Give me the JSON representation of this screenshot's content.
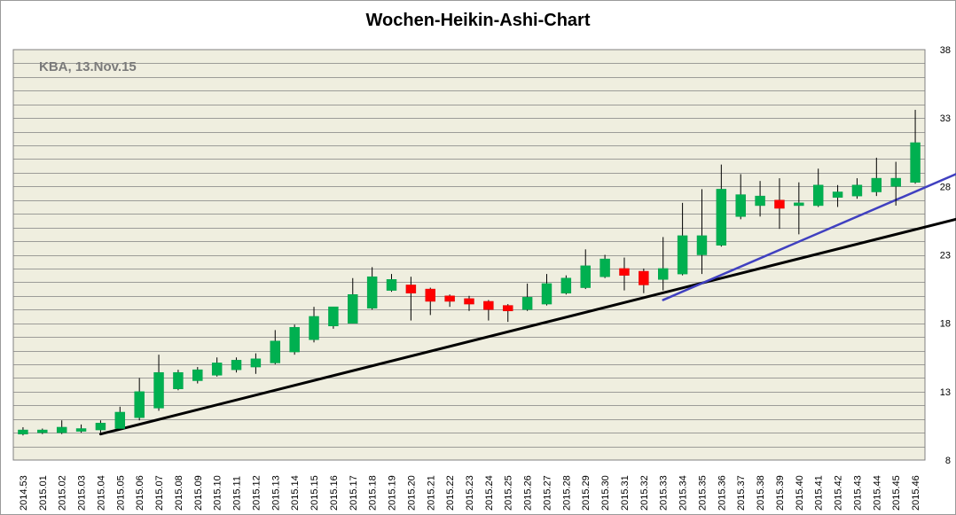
{
  "chart_data": {
    "type": "candlestick",
    "title": "Wochen-Heikin-Ashi-Chart",
    "annotation": "KBA, 13.Nov.15",
    "xlabel": "",
    "ylabel": "",
    "ylim": [
      8,
      38
    ],
    "y_ticks": [
      8,
      13,
      18,
      23,
      28,
      33,
      38
    ],
    "y_axis_side": "right",
    "grid": true,
    "background": "#efeedf",
    "colors": {
      "up": "#00b050",
      "down": "#ff0000",
      "wick": "#000000",
      "trend_main": "#000000",
      "trend_recent": "#4040c0",
      "grid": "#808080"
    },
    "categories": [
      "2014.53",
      "2015.01",
      "2015.02",
      "2015.03",
      "2015.04",
      "2015.05",
      "2015.06",
      "2015.07",
      "2015.08",
      "2015.09",
      "2015.10",
      "2015.11",
      "2015.12",
      "2015.13",
      "2015.14",
      "2015.15",
      "2015.16",
      "2015.17",
      "2015.18",
      "2015.19",
      "2015.20",
      "2015.21",
      "2015.22",
      "2015.23",
      "2015.24",
      "2015.25",
      "2015.26",
      "2015.27",
      "2015.28",
      "2015.29",
      "2015.30",
      "2015.31",
      "2015.32",
      "2015.33",
      "2015.34",
      "2015.35",
      "2015.36",
      "2015.37",
      "2015.38",
      "2015.39",
      "2015.40",
      "2015.41",
      "2015.42",
      "2015.43",
      "2015.44",
      "2015.45",
      "2015.46"
    ],
    "candles": [
      {
        "open": 9.9,
        "close": 10.2,
        "high": 10.4,
        "low": 9.8,
        "dir": "up"
      },
      {
        "open": 10.0,
        "close": 10.2,
        "high": 10.3,
        "low": 9.9,
        "dir": "up"
      },
      {
        "open": 10.0,
        "close": 10.4,
        "high": 10.9,
        "low": 9.9,
        "dir": "up"
      },
      {
        "open": 10.1,
        "close": 10.3,
        "high": 10.6,
        "low": 10.0,
        "dir": "up"
      },
      {
        "open": 10.2,
        "close": 10.7,
        "high": 10.9,
        "low": 10.0,
        "dir": "up"
      },
      {
        "open": 10.3,
        "close": 11.5,
        "high": 11.9,
        "low": 10.2,
        "dir": "up"
      },
      {
        "open": 11.1,
        "close": 13.0,
        "high": 14.0,
        "low": 10.9,
        "dir": "up"
      },
      {
        "open": 11.8,
        "close": 14.4,
        "high": 15.7,
        "low": 11.6,
        "dir": "up"
      },
      {
        "open": 13.2,
        "close": 14.4,
        "high": 14.6,
        "low": 13.1,
        "dir": "up"
      },
      {
        "open": 13.8,
        "close": 14.6,
        "high": 14.8,
        "low": 13.6,
        "dir": "up"
      },
      {
        "open": 14.2,
        "close": 15.1,
        "high": 15.5,
        "low": 14.1,
        "dir": "up"
      },
      {
        "open": 14.6,
        "close": 15.3,
        "high": 15.5,
        "low": 14.4,
        "dir": "up"
      },
      {
        "open": 14.8,
        "close": 15.4,
        "high": 15.8,
        "low": 14.3,
        "dir": "up"
      },
      {
        "open": 15.1,
        "close": 16.7,
        "high": 17.5,
        "low": 15.0,
        "dir": "up"
      },
      {
        "open": 15.9,
        "close": 17.7,
        "high": 17.9,
        "low": 15.7,
        "dir": "up"
      },
      {
        "open": 16.8,
        "close": 18.5,
        "high": 19.2,
        "low": 16.6,
        "dir": "up"
      },
      {
        "open": 17.8,
        "close": 19.2,
        "high": 19.2,
        "low": 17.6,
        "dir": "up"
      },
      {
        "open": 18.0,
        "close": 20.1,
        "high": 21.3,
        "low": 18.0,
        "dir": "up"
      },
      {
        "open": 19.1,
        "close": 21.4,
        "high": 22.1,
        "low": 19.0,
        "dir": "up"
      },
      {
        "open": 20.4,
        "close": 21.2,
        "high": 21.6,
        "low": 20.3,
        "dir": "up"
      },
      {
        "open": 20.8,
        "close": 20.2,
        "high": 21.4,
        "low": 18.2,
        "dir": "down"
      },
      {
        "open": 20.5,
        "close": 19.6,
        "high": 20.6,
        "low": 18.6,
        "dir": "down"
      },
      {
        "open": 20.0,
        "close": 19.6,
        "high": 20.1,
        "low": 19.2,
        "dir": "down"
      },
      {
        "open": 19.8,
        "close": 19.4,
        "high": 20.0,
        "low": 18.9,
        "dir": "down"
      },
      {
        "open": 19.6,
        "close": 19.0,
        "high": 19.7,
        "low": 18.2,
        "dir": "down"
      },
      {
        "open": 19.3,
        "close": 18.9,
        "high": 19.4,
        "low": 18.1,
        "dir": "down"
      },
      {
        "open": 19.0,
        "close": 19.9,
        "high": 20.9,
        "low": 18.9,
        "dir": "up"
      },
      {
        "open": 19.4,
        "close": 20.9,
        "high": 21.6,
        "low": 19.3,
        "dir": "up"
      },
      {
        "open": 20.2,
        "close": 21.3,
        "high": 21.5,
        "low": 20.1,
        "dir": "up"
      },
      {
        "open": 20.6,
        "close": 22.2,
        "high": 23.4,
        "low": 20.5,
        "dir": "up"
      },
      {
        "open": 21.4,
        "close": 22.7,
        "high": 23.0,
        "low": 21.3,
        "dir": "up"
      },
      {
        "open": 22.0,
        "close": 21.5,
        "high": 22.8,
        "low": 20.4,
        "dir": "down"
      },
      {
        "open": 21.8,
        "close": 20.8,
        "high": 22.0,
        "low": 20.2,
        "dir": "down"
      },
      {
        "open": 21.2,
        "close": 22.0,
        "high": 24.3,
        "low": 20.4,
        "dir": "up"
      },
      {
        "open": 21.6,
        "close": 24.4,
        "high": 26.8,
        "low": 21.5,
        "dir": "up"
      },
      {
        "open": 23.0,
        "close": 24.4,
        "high": 27.8,
        "low": 21.6,
        "dir": "up"
      },
      {
        "open": 23.7,
        "close": 27.8,
        "high": 29.6,
        "low": 23.6,
        "dir": "up"
      },
      {
        "open": 25.8,
        "close": 27.4,
        "high": 28.9,
        "low": 25.6,
        "dir": "up"
      },
      {
        "open": 26.6,
        "close": 27.3,
        "high": 28.4,
        "low": 25.8,
        "dir": "up"
      },
      {
        "open": 27.0,
        "close": 26.4,
        "high": 28.6,
        "low": 24.9,
        "dir": "down"
      },
      {
        "open": 26.6,
        "close": 26.8,
        "high": 28.3,
        "low": 24.5,
        "dir": "up"
      },
      {
        "open": 26.6,
        "close": 28.1,
        "high": 29.3,
        "low": 26.5,
        "dir": "up"
      },
      {
        "open": 27.2,
        "close": 27.6,
        "high": 28.1,
        "low": 26.5,
        "dir": "up"
      },
      {
        "open": 27.3,
        "close": 28.1,
        "high": 28.6,
        "low": 27.1,
        "dir": "up"
      },
      {
        "open": 27.6,
        "close": 28.6,
        "high": 30.1,
        "low": 27.3,
        "dir": "up"
      },
      {
        "open": 28.0,
        "close": 28.6,
        "high": 29.8,
        "low": 26.6,
        "dir": "up"
      },
      {
        "open": 28.3,
        "close": 31.2,
        "high": 33.6,
        "low": 28.2,
        "dir": "up"
      }
    ],
    "trendlines": [
      {
        "name": "",
        "color": "#000000",
        "from": {
          "x": "2015.04",
          "y": 9.9
        },
        "to": {
          "x": "beyond 2015.46",
          "y": 25.6
        }
      },
      {
        "name": "",
        "color": "#4040c0",
        "from": {
          "x": "2015.33",
          "y": 19.7
        },
        "to": {
          "x": "beyond 2015.46",
          "y": 28.9
        }
      }
    ]
  }
}
